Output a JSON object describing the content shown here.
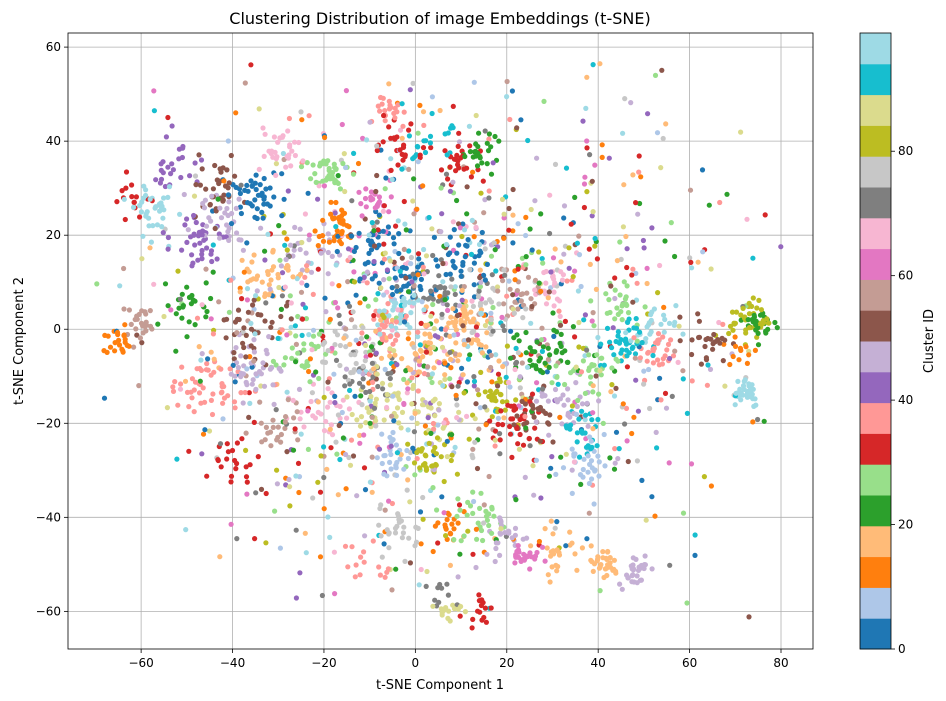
{
  "chart_data": {
    "type": "scatter",
    "title": "Clustering Distribution of image Embeddings (t-SNE)",
    "xlabel": "t-SNE Component 1",
    "ylabel": "t-SNE Component 2",
    "xlim": [
      -76,
      87
    ],
    "ylim": [
      -68,
      63
    ],
    "xticks": [
      -60,
      -40,
      -20,
      0,
      20,
      40,
      60,
      80
    ],
    "yticks": [
      -60,
      -40,
      -20,
      0,
      20,
      40,
      60
    ],
    "grid": true,
    "colorbar": {
      "label": "Cluster ID",
      "range": [
        0,
        99
      ],
      "ticks": [
        0,
        20,
        40,
        60,
        80
      ],
      "colormap": "tab20",
      "colors": [
        "#1f77b4",
        "#aec7e8",
        "#ff7f0e",
        "#ffbb78",
        "#2ca02c",
        "#98df8a",
        "#d62728",
        "#ff9896",
        "#9467bd",
        "#c5b0d5",
        "#8c564b",
        "#c49c94",
        "#e377c2",
        "#f7b6d2",
        "#7f7f7f",
        "#c7c7c7",
        "#bcbd22",
        "#dbdb8d",
        "#17becf",
        "#9edae5"
      ]
    },
    "clusters": [
      {
        "cx": -57,
        "cy": 25,
        "sd": 2.2,
        "n": 35,
        "id": 97
      },
      {
        "cx": -65,
        "cy": -3,
        "sd": 1.6,
        "n": 22,
        "id": 12
      },
      {
        "cx": -60,
        "cy": 1,
        "sd": 2.0,
        "n": 25,
        "id": 57
      },
      {
        "cx": -62,
        "cy": 27,
        "sd": 2.5,
        "n": 15,
        "id": 32
      },
      {
        "cx": -53,
        "cy": 36,
        "sd": 3.0,
        "n": 25,
        "id": 42
      },
      {
        "cx": -35,
        "cy": 28,
        "sd": 3.0,
        "n": 45,
        "id": 2
      },
      {
        "cx": -44,
        "cy": 30,
        "sd": 3.0,
        "n": 35,
        "id": 52
      },
      {
        "cx": -47,
        "cy": 19,
        "sd": 3.0,
        "n": 40,
        "id": 42
      },
      {
        "cx": -42,
        "cy": 25,
        "sd": 3.0,
        "n": 30,
        "id": 47
      },
      {
        "cx": -33,
        "cy": 12,
        "sd": 3.0,
        "n": 35,
        "id": 17
      },
      {
        "cx": -30,
        "cy": 38,
        "sd": 3.0,
        "n": 30,
        "id": 67
      },
      {
        "cx": -20,
        "cy": 33,
        "sd": 2.5,
        "n": 35,
        "id": 27
      },
      {
        "cx": -17,
        "cy": 22,
        "sd": 2.2,
        "n": 35,
        "id": 12
      },
      {
        "cx": -23,
        "cy": 15,
        "sd": 3.0,
        "n": 25,
        "id": 47
      },
      {
        "cx": -8,
        "cy": 27,
        "sd": 2.5,
        "n": 25,
        "id": 62
      },
      {
        "cx": -5,
        "cy": 47,
        "sd": 2.0,
        "n": 20,
        "id": 37
      },
      {
        "cx": -3,
        "cy": 38,
        "sd": 2.5,
        "n": 25,
        "id": 32
      },
      {
        "cx": 3,
        "cy": 40,
        "sd": 2.5,
        "n": 20,
        "id": 92
      },
      {
        "cx": 14,
        "cy": 38,
        "sd": 1.8,
        "n": 25,
        "id": 22
      },
      {
        "cx": 10,
        "cy": 36,
        "sd": 2.5,
        "n": 25,
        "id": 32
      },
      {
        "cx": -10,
        "cy": 18,
        "sd": 3.0,
        "n": 30,
        "id": 2
      },
      {
        "cx": -1,
        "cy": 10,
        "sd": 3.5,
        "n": 40,
        "id": 2
      },
      {
        "cx": 10,
        "cy": 15,
        "sd": 3.5,
        "n": 35,
        "id": 2
      },
      {
        "cx": 5,
        "cy": 8,
        "sd": 3.0,
        "n": 30,
        "id": 72
      },
      {
        "cx": -4,
        "cy": 3,
        "sd": 2.5,
        "n": 40,
        "id": 95
      },
      {
        "cx": -5,
        "cy": 1,
        "sd": 2.5,
        "n": 30,
        "id": 37
      },
      {
        "cx": 11,
        "cy": 0,
        "sd": 3.5,
        "n": 50,
        "id": 17
      },
      {
        "cx": 1,
        "cy": -5,
        "sd": 3.0,
        "n": 40,
        "id": 17
      },
      {
        "cx": 15,
        "cy": 5,
        "sd": 3.0,
        "n": 25,
        "id": 77
      },
      {
        "cx": 23,
        "cy": 7,
        "sd": 3.0,
        "n": 25,
        "id": 57
      },
      {
        "cx": 29,
        "cy": 8,
        "sd": 2.5,
        "n": 25,
        "id": 67
      },
      {
        "cx": -15,
        "cy": -5,
        "sd": 3.0,
        "n": 30,
        "id": 77
      },
      {
        "cx": -10,
        "cy": -10,
        "sd": 3.0,
        "n": 30,
        "id": 72
      },
      {
        "cx": -25,
        "cy": -5,
        "sd": 3.0,
        "n": 30,
        "id": 27
      },
      {
        "cx": -38,
        "cy": 0,
        "sd": 3.0,
        "n": 30,
        "id": 52
      },
      {
        "cx": -45,
        "cy": -12,
        "sd": 3.5,
        "n": 45,
        "id": 37
      },
      {
        "cx": -35,
        "cy": -8,
        "sd": 3.0,
        "n": 35,
        "id": 47
      },
      {
        "cx": -50,
        "cy": 5,
        "sd": 3.0,
        "n": 25,
        "id": 22
      },
      {
        "cx": -30,
        "cy": -20,
        "sd": 3.0,
        "n": 25,
        "id": 57
      },
      {
        "cx": -20,
        "cy": -17,
        "sd": 3.0,
        "n": 25,
        "id": 67
      },
      {
        "cx": -8,
        "cy": -17,
        "sd": 3.0,
        "n": 30,
        "id": 87
      },
      {
        "cx": 4,
        "cy": -17,
        "sd": 3.0,
        "n": 30,
        "id": 87
      },
      {
        "cx": 4,
        "cy": -27,
        "sd": 2.2,
        "n": 30,
        "id": 82
      },
      {
        "cx": -5,
        "cy": -27,
        "sd": 2.5,
        "n": 25,
        "id": 7
      },
      {
        "cx": 18,
        "cy": -14,
        "sd": 2.5,
        "n": 30,
        "id": 82
      },
      {
        "cx": 22,
        "cy": -20,
        "sd": 3.0,
        "n": 35,
        "id": 32
      },
      {
        "cx": 26,
        "cy": -18,
        "sd": 2.5,
        "n": 25,
        "id": 52
      },
      {
        "cx": 33,
        "cy": -17,
        "sd": 3.0,
        "n": 30,
        "id": 47
      },
      {
        "cx": 37,
        "cy": -22,
        "sd": 2.5,
        "n": 25,
        "id": 92
      },
      {
        "cx": 37,
        "cy": -29,
        "sd": 3.0,
        "n": 30,
        "id": 7
      },
      {
        "cx": 28,
        "cy": -5,
        "sd": 3.5,
        "n": 35,
        "id": 22
      },
      {
        "cx": 38,
        "cy": -10,
        "sd": 3.0,
        "n": 30,
        "id": 27
      },
      {
        "cx": 45,
        "cy": -3,
        "sd": 2.5,
        "n": 35,
        "id": 92
      },
      {
        "cx": 52,
        "cy": 0,
        "sd": 2.5,
        "n": 25,
        "id": 97
      },
      {
        "cx": 53,
        "cy": -5,
        "sd": 2.0,
        "n": 25,
        "id": 37
      },
      {
        "cx": 44,
        "cy": 5,
        "sd": 3.0,
        "n": 25,
        "id": 27
      },
      {
        "cx": 64,
        "cy": -2,
        "sd": 2.5,
        "n": 25,
        "id": 52
      },
      {
        "cx": 73,
        "cy": 2,
        "sd": 2.2,
        "n": 40,
        "id": 82
      },
      {
        "cx": 76,
        "cy": 1,
        "sd": 1.8,
        "n": 25,
        "id": 22
      },
      {
        "cx": 72,
        "cy": -13,
        "sd": 1.8,
        "n": 35,
        "id": 97
      },
      {
        "cx": 71,
        "cy": -5,
        "sd": 2.0,
        "n": 12,
        "id": 12
      },
      {
        "cx": -3,
        "cy": -43,
        "sd": 2.5,
        "n": 25,
        "id": 77
      },
      {
        "cx": 8,
        "cy": -42,
        "sd": 2.5,
        "n": 20,
        "id": 12
      },
      {
        "cx": 14,
        "cy": -40,
        "sd": 3.0,
        "n": 30,
        "id": 27
      },
      {
        "cx": 20,
        "cy": -44,
        "sd": 2.5,
        "n": 25,
        "id": 47
      },
      {
        "cx": 24,
        "cy": -48,
        "sd": 1.6,
        "n": 25,
        "id": 62
      },
      {
        "cx": 31,
        "cy": -47,
        "sd": 2.5,
        "n": 25,
        "id": 17
      },
      {
        "cx": 41,
        "cy": -50,
        "sd": 1.8,
        "n": 30,
        "id": 17
      },
      {
        "cx": 48,
        "cy": -51,
        "sd": 1.8,
        "n": 30,
        "id": 47
      },
      {
        "cx": 7,
        "cy": -60,
        "sd": 1.5,
        "n": 15,
        "id": 87
      },
      {
        "cx": 14,
        "cy": -59,
        "sd": 1.5,
        "n": 15,
        "id": 32
      },
      {
        "cx": 6,
        "cy": -57,
        "sd": 1.5,
        "n": 10,
        "id": 72
      },
      {
        "cx": -10,
        "cy": -50,
        "sd": 3.0,
        "n": 15,
        "id": 37
      },
      {
        "cx": -40,
        "cy": -28,
        "sd": 3.0,
        "n": 20,
        "id": 32
      }
    ],
    "background_points": 1300,
    "background_spread": [
      30,
      24
    ]
  }
}
